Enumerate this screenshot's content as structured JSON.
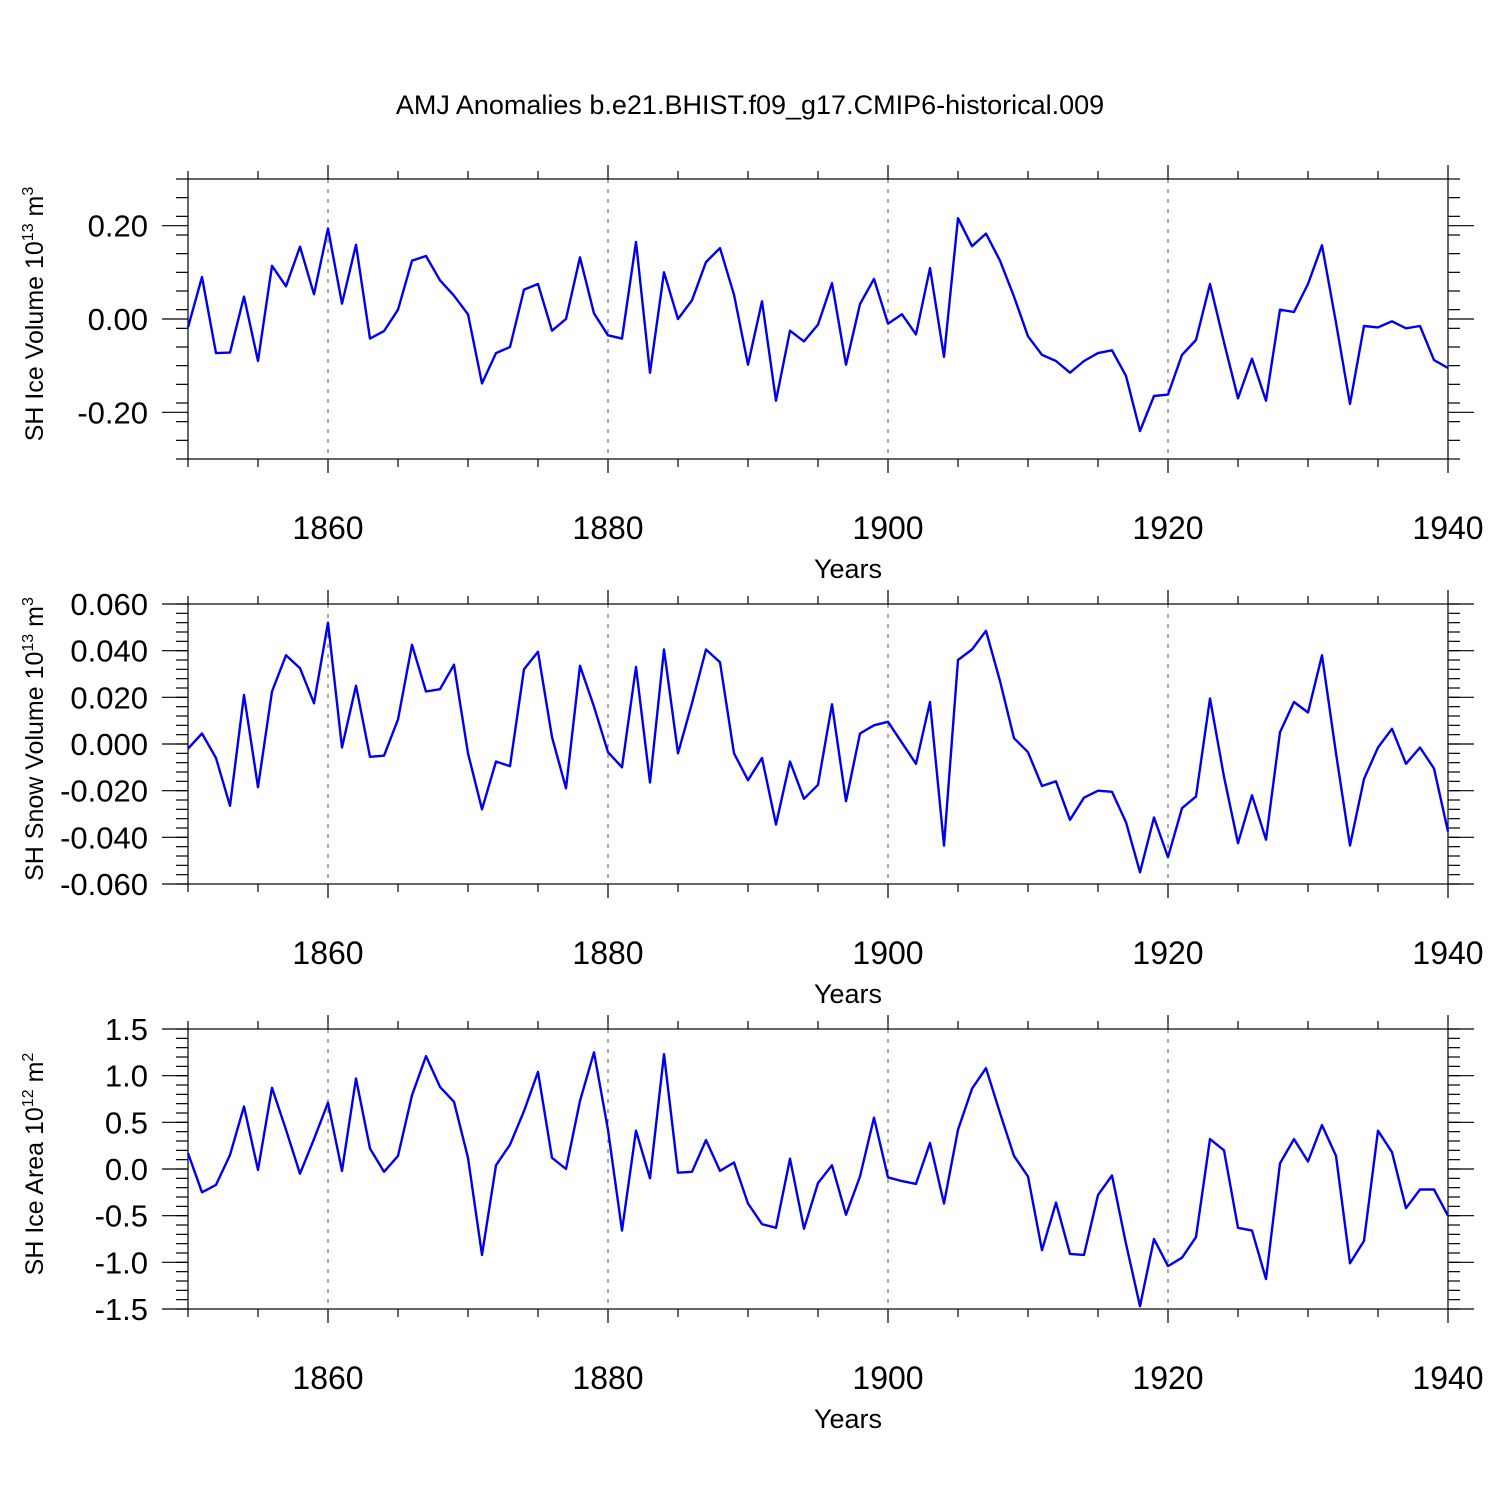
{
  "page": {
    "title": "AMJ Anomalies b.e21.BHIST.f09_g17.CMIP6-historical.009"
  },
  "colors": {
    "series": "#0000ee",
    "axis": "#000000",
    "grid": "#555555"
  },
  "chart_data": [
    {
      "type": "line",
      "id": "ice-volume",
      "title": "",
      "xlabel": "Years",
      "ylabel_main": "SH Ice Volume 10",
      "ylabel_sup": "13",
      "ylabel_unit": " m",
      "ylabel_unit_sup": "3",
      "xlim": [
        1850,
        1940
      ],
      "ylim": [
        -0.3,
        0.3
      ],
      "xticks": [
        1860,
        1880,
        1900,
        1920,
        1940
      ],
      "xtick_labels": [
        "1860",
        "1880",
        "1900",
        "1920",
        "1940"
      ],
      "yticks": [
        -0.2,
        0.0,
        0.2
      ],
      "ytick_labels": [
        "-0.20",
        "0.00",
        "0.20"
      ],
      "grid_x": [
        1860,
        1880,
        1900,
        1920
      ],
      "x": [
        1850,
        1851,
        1852,
        1853,
        1854,
        1855,
        1856,
        1857,
        1858,
        1859,
        1860,
        1861,
        1862,
        1863,
        1864,
        1865,
        1866,
        1867,
        1868,
        1869,
        1870,
        1871,
        1872,
        1873,
        1874,
        1875,
        1876,
        1877,
        1878,
        1879,
        1880,
        1881,
        1882,
        1883,
        1884,
        1885,
        1886,
        1887,
        1888,
        1889,
        1890,
        1891,
        1892,
        1893,
        1894,
        1895,
        1896,
        1897,
        1898,
        1899,
        1900,
        1901,
        1902,
        1903,
        1904,
        1905,
        1906,
        1907,
        1908,
        1909,
        1910,
        1911,
        1912,
        1913,
        1914,
        1915,
        1916,
        1917,
        1918,
        1919,
        1920,
        1921,
        1922,
        1923,
        1924,
        1925,
        1926,
        1927,
        1928,
        1929,
        1930,
        1931,
        1932,
        1933,
        1934,
        1935,
        1936,
        1937,
        1938,
        1939,
        1940
      ],
      "values": [
        -0.018,
        0.09,
        -0.073,
        -0.072,
        0.048,
        -0.09,
        0.114,
        0.07,
        0.155,
        0.053,
        0.194,
        0.033,
        0.159,
        -0.042,
        -0.026,
        0.02,
        0.125,
        0.135,
        0.083,
        0.05,
        0.01,
        -0.138,
        -0.073,
        -0.06,
        0.063,
        0.075,
        -0.025,
        0.0,
        0.132,
        0.012,
        -0.035,
        -0.042,
        0.165,
        -0.115,
        0.1,
        0.0,
        0.04,
        0.122,
        0.152,
        0.052,
        -0.098,
        0.038,
        -0.175,
        -0.025,
        -0.048,
        -0.012,
        0.077,
        -0.098,
        0.032,
        0.086,
        -0.01,
        0.01,
        -0.033,
        0.109,
        -0.081,
        0.216,
        0.156,
        0.183,
        0.125,
        0.048,
        -0.037,
        -0.077,
        -0.09,
        -0.115,
        -0.09,
        -0.073,
        -0.067,
        -0.122,
        -0.24,
        -0.165,
        -0.162,
        -0.077,
        -0.045,
        0.075,
        -0.05,
        -0.17,
        -0.085,
        -0.175,
        0.02,
        0.015,
        0.075,
        0.158,
        -0.008,
        -0.182,
        -0.015,
        -0.018,
        -0.005,
        -0.02,
        -0.015,
        -0.088,
        -0.105
      ]
    },
    {
      "type": "line",
      "id": "snow-volume",
      "title": "",
      "xlabel": "Years",
      "ylabel_main": "SH Snow Volume 10",
      "ylabel_sup": "13",
      "ylabel_unit": " m",
      "ylabel_unit_sup": "3",
      "xlim": [
        1850,
        1940
      ],
      "ylim": [
        -0.06,
        0.06
      ],
      "xticks": [
        1860,
        1880,
        1900,
        1920,
        1940
      ],
      "xtick_labels": [
        "1860",
        "1880",
        "1900",
        "1920",
        "1940"
      ],
      "yticks": [
        -0.06,
        -0.04,
        -0.02,
        0.0,
        0.02,
        0.04,
        0.06
      ],
      "ytick_labels": [
        "-0.060",
        "-0.040",
        "-0.020",
        "0.000",
        "0.020",
        "0.040",
        "0.060"
      ],
      "grid_x": [
        1860,
        1880,
        1900,
        1920
      ],
      "x": [
        1850,
        1851,
        1852,
        1853,
        1854,
        1855,
        1856,
        1857,
        1858,
        1859,
        1860,
        1861,
        1862,
        1863,
        1864,
        1865,
        1866,
        1867,
        1868,
        1869,
        1870,
        1871,
        1872,
        1873,
        1874,
        1875,
        1876,
        1877,
        1878,
        1879,
        1880,
        1881,
        1882,
        1883,
        1884,
        1885,
        1886,
        1887,
        1888,
        1889,
        1890,
        1891,
        1892,
        1893,
        1894,
        1895,
        1896,
        1897,
        1898,
        1899,
        1900,
        1901,
        1902,
        1903,
        1904,
        1905,
        1906,
        1907,
        1908,
        1909,
        1910,
        1911,
        1912,
        1913,
        1914,
        1915,
        1916,
        1917,
        1918,
        1919,
        1920,
        1921,
        1922,
        1923,
        1924,
        1925,
        1926,
        1927,
        1928,
        1929,
        1930,
        1931,
        1932,
        1933,
        1934,
        1935,
        1936,
        1937,
        1938,
        1939,
        1940
      ],
      "values": [
        -0.002,
        0.0045,
        -0.006,
        -0.0265,
        0.021,
        -0.0185,
        0.0225,
        0.038,
        0.0325,
        0.0175,
        0.052,
        -0.0015,
        0.025,
        -0.0055,
        -0.005,
        0.0105,
        0.0425,
        0.0225,
        0.0235,
        0.034,
        -0.004,
        -0.028,
        -0.0075,
        -0.0095,
        0.032,
        0.0395,
        0.003,
        -0.019,
        0.0335,
        0.016,
        -0.0035,
        -0.01,
        0.033,
        -0.0165,
        0.0405,
        -0.004,
        0.0175,
        0.0405,
        0.035,
        -0.004,
        -0.0155,
        -0.006,
        -0.0345,
        -0.0075,
        -0.0235,
        -0.0175,
        0.017,
        -0.0245,
        0.0045,
        0.008,
        0.0095,
        0.0005,
        -0.0085,
        0.018,
        -0.0435,
        0.036,
        0.0405,
        0.0485,
        0.027,
        0.0025,
        -0.0035,
        -0.018,
        -0.016,
        -0.0325,
        -0.023,
        -0.02,
        -0.0205,
        -0.0335,
        -0.055,
        -0.0315,
        -0.0485,
        -0.0275,
        -0.0225,
        0.0195,
        -0.014,
        -0.0425,
        -0.022,
        -0.041,
        0.005,
        0.018,
        0.0135,
        0.038,
        -0.004,
        -0.0435,
        -0.015,
        -0.0015,
        0.0065,
        -0.0085,
        -0.0015,
        -0.0105,
        -0.0375
      ]
    },
    {
      "type": "line",
      "id": "ice-area",
      "title": "",
      "xlabel": "Years",
      "ylabel_main": "SH Ice Area 10",
      "ylabel_sup": "12",
      "ylabel_unit": " m",
      "ylabel_unit_sup": "2",
      "xlim": [
        1850,
        1940
      ],
      "ylim": [
        -1.5,
        1.5
      ],
      "xticks": [
        1860,
        1880,
        1900,
        1920,
        1940
      ],
      "xtick_labels": [
        "1860",
        "1880",
        "1900",
        "1920",
        "1940"
      ],
      "yticks": [
        -1.5,
        -1.0,
        -0.5,
        0.0,
        0.5,
        1.0,
        1.5
      ],
      "ytick_labels": [
        "-1.5",
        "-1.0",
        "-0.5",
        "0.0",
        "0.5",
        "1.0",
        "1.5"
      ],
      "grid_x": [
        1860,
        1880,
        1900,
        1920
      ],
      "x": [
        1850,
        1851,
        1852,
        1853,
        1854,
        1855,
        1856,
        1857,
        1858,
        1859,
        1860,
        1861,
        1862,
        1863,
        1864,
        1865,
        1866,
        1867,
        1868,
        1869,
        1870,
        1871,
        1872,
        1873,
        1874,
        1875,
        1876,
        1877,
        1878,
        1879,
        1880,
        1881,
        1882,
        1883,
        1884,
        1885,
        1886,
        1887,
        1888,
        1889,
        1890,
        1891,
        1892,
        1893,
        1894,
        1895,
        1896,
        1897,
        1898,
        1899,
        1900,
        1901,
        1902,
        1903,
        1904,
        1905,
        1906,
        1907,
        1908,
        1909,
        1910,
        1911,
        1912,
        1913,
        1914,
        1915,
        1916,
        1917,
        1918,
        1919,
        1920,
        1921,
        1922,
        1923,
        1924,
        1925,
        1926,
        1927,
        1928,
        1929,
        1930,
        1931,
        1932,
        1933,
        1934,
        1935,
        1936,
        1937,
        1938,
        1939,
        1940
      ],
      "values": [
        0.17,
        -0.25,
        -0.17,
        0.15,
        0.67,
        -0.01,
        0.87,
        0.42,
        -0.05,
        0.32,
        0.71,
        -0.02,
        0.97,
        0.22,
        -0.03,
        0.14,
        0.79,
        1.21,
        0.88,
        0.72,
        0.12,
        -0.92,
        0.04,
        0.26,
        0.62,
        1.04,
        0.12,
        0.0,
        0.73,
        1.25,
        0.42,
        -0.66,
        0.41,
        -0.1,
        1.23,
        -0.04,
        -0.03,
        0.31,
        -0.02,
        0.07,
        -0.37,
        -0.59,
        -0.63,
        0.11,
        -0.64,
        -0.15,
        0.04,
        -0.49,
        -0.08,
        0.55,
        -0.09,
        -0.13,
        -0.16,
        0.28,
        -0.37,
        0.42,
        0.86,
        1.08,
        0.6,
        0.14,
        -0.08,
        -0.87,
        -0.36,
        -0.91,
        -0.92,
        -0.28,
        -0.07,
        -0.8,
        -1.47,
        -0.75,
        -1.04,
        -0.95,
        -0.73,
        0.32,
        0.2,
        -0.63,
        -0.66,
        -1.18,
        0.06,
        0.32,
        0.08,
        0.47,
        0.14,
        -1.01,
        -0.77,
        0.41,
        0.18,
        -0.42,
        -0.22,
        -0.22,
        -0.5
      ]
    }
  ]
}
